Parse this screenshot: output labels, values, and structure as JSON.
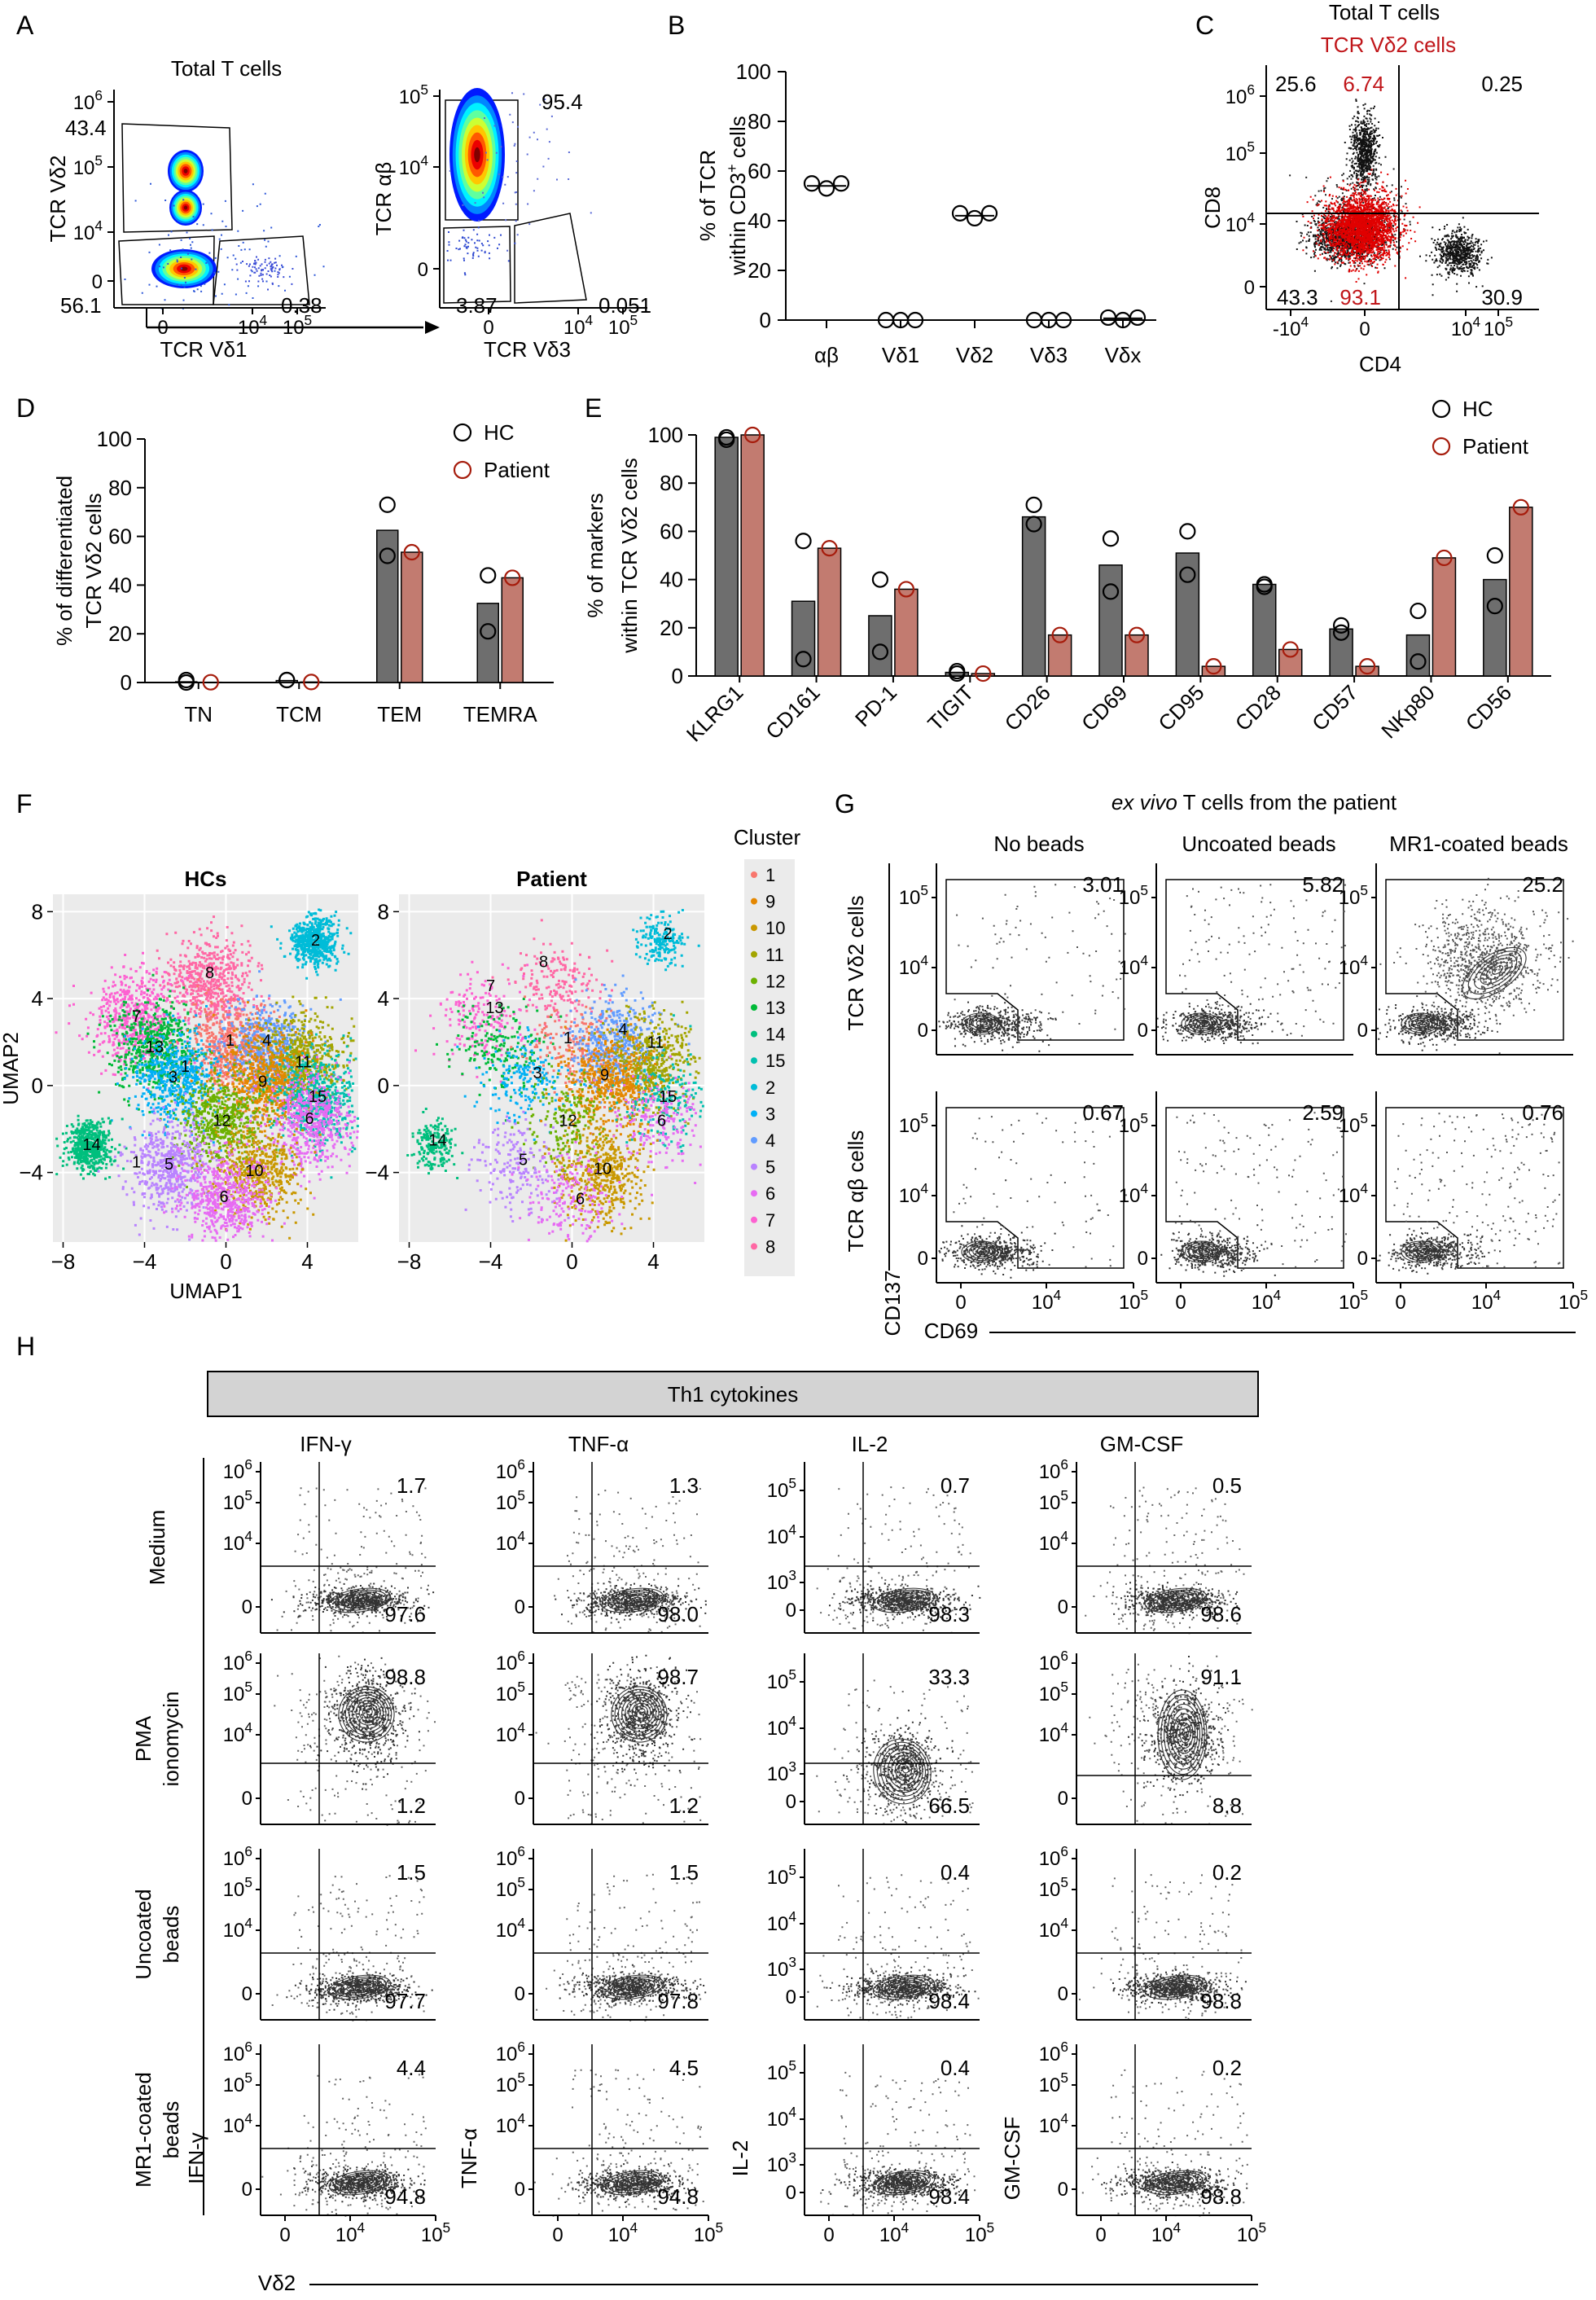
{
  "colors": {
    "hc_bar": "#6e6e6e",
    "patient_bar": "#c27b70",
    "patient_circle": "#a61c0c",
    "red_text": "#c0161a",
    "header_fill": "#d3d3d3",
    "umap_bg": "#ebebeb"
  },
  "chart_data": [
    {
      "id": "A",
      "type": "scatter",
      "panel_label": "A",
      "title": "Total T cells",
      "plots": [
        {
          "xlabel": "TCR Vδ1",
          "ylabel": "TCR Vδ2",
          "yticks": [
            "10^6",
            "10^5",
            "10^4",
            "0"
          ],
          "xticks": [
            "0",
            "10^4",
            "10^5"
          ],
          "gates": [
            "43.4",
            "56.1",
            "0.38"
          ]
        },
        {
          "xlabel": "TCR Vδ3",
          "ylabel": "TCR αβ",
          "yticks": [
            "10^5",
            "10^4",
            "0"
          ],
          "xticks": [
            "0",
            "10^4",
            "10^5"
          ],
          "gates": [
            "95.4",
            "3.87",
            "0.051"
          ]
        }
      ]
    },
    {
      "id": "B",
      "type": "scatter",
      "panel_label": "B",
      "ylabel_lines": [
        "% of TCR",
        "within CD3+ cells"
      ],
      "ylim": [
        0,
        100
      ],
      "yticks": [
        0,
        20,
        40,
        60,
        80,
        100
      ],
      "categories": [
        "αβ",
        "Vδ1",
        "Vδ2",
        "Vδ3",
        "Vδx"
      ],
      "values": [
        [
          55,
          53,
          55
        ],
        [
          0,
          0,
          0
        ],
        [
          43,
          41,
          43
        ],
        [
          0,
          0,
          0
        ],
        [
          1,
          0,
          1
        ]
      ],
      "means": [
        54,
        0,
        42,
        0,
        0.7
      ]
    },
    {
      "id": "C",
      "type": "scatter",
      "panel_label": "C",
      "title": "Total T cells",
      "subtitle": "TCR Vδ2 cells",
      "xlabel": "CD4",
      "ylabel": "CD8",
      "xticks": [
        "-10^4",
        "0",
        "10^4",
        "10^5"
      ],
      "yticks": [
        "10^6",
        "10^5",
        "10^4",
        "0"
      ],
      "quadrants": [
        "25.6",
        "6.74",
        "0.25",
        "43.3",
        "93.1",
        "30.9"
      ]
    },
    {
      "id": "D",
      "type": "bar",
      "panel_label": "D",
      "ylabel_lines": [
        "% of differentiated",
        "TCR Vδ2 cells"
      ],
      "ylim": [
        0,
        100
      ],
      "yticks": [
        0,
        20,
        40,
        60,
        80,
        100
      ],
      "categories": [
        "TN",
        "TCM",
        "TEM",
        "TEMRA"
      ],
      "series": [
        {
          "name": "HC",
          "values": [
            0.3,
            0.8,
            62.5,
            32.5
          ],
          "points": [
            [
              0,
              1
            ],
            [
              1,
              1
            ],
            [
              52,
              73
            ],
            [
              21,
              44
            ]
          ]
        },
        {
          "name": "Patient",
          "values": [
            0.1,
            0.2,
            53.5,
            43
          ],
          "points": [
            [
              0.1
            ],
            [
              0.2
            ],
            [
              53.5
            ],
            [
              43
            ]
          ]
        }
      ],
      "legend": [
        "HC",
        "Patient"
      ]
    },
    {
      "id": "E",
      "type": "bar",
      "panel_label": "E",
      "ylabel_lines": [
        "% of markers",
        "within TCR Vδ2 cells"
      ],
      "ylim": [
        0,
        100
      ],
      "yticks": [
        0,
        20,
        40,
        60,
        80,
        100
      ],
      "categories": [
        "KLRG1",
        "CD161",
        "PD-1",
        "TIGIT",
        "CD26",
        "CD69",
        "CD95",
        "CD28",
        "CD57",
        "NKp80",
        "CD56"
      ],
      "series": [
        {
          "name": "HC",
          "values": [
            99,
            31,
            25,
            1.5,
            66,
            46,
            51,
            38,
            19.5,
            17,
            40
          ],
          "points": [
            [
              99,
              98
            ],
            [
              56,
              7
            ],
            [
              40,
              10
            ],
            [
              1,
              2
            ],
            [
              71,
              63
            ],
            [
              57,
              35
            ],
            [
              60,
              42
            ],
            [
              38,
              37
            ],
            [
              21,
              18
            ],
            [
              27,
              6
            ],
            [
              50,
              29
            ]
          ]
        },
        {
          "name": "Patient",
          "values": [
            100,
            53,
            36,
            1,
            17,
            17,
            4,
            11,
            4,
            49,
            70
          ],
          "points": [
            [
              100
            ],
            [
              53
            ],
            [
              36
            ],
            [
              1
            ],
            [
              17
            ],
            [
              17
            ],
            [
              4
            ],
            [
              11
            ],
            [
              4
            ],
            [
              49
            ],
            [
              70
            ]
          ]
        }
      ],
      "legend": [
        "HC",
        "Patient"
      ]
    },
    {
      "id": "F",
      "type": "scatter",
      "panel_label": "F",
      "titles": [
        "HCs",
        "Patient"
      ],
      "xlabel": "UMAP1",
      "ylabel": "UMAP2",
      "xticks": [
        -8,
        -4,
        0,
        4
      ],
      "yticks": [
        8,
        4,
        0,
        -4
      ],
      "xlim": [
        -8.5,
        6.5
      ],
      "ylim": [
        -7.2,
        8.8
      ],
      "legend_title": "Cluster",
      "clusters": [
        {
          "name": "1",
          "color": "#f8766d"
        },
        {
          "name": "9",
          "color": "#e58700"
        },
        {
          "name": "10",
          "color": "#c99800"
        },
        {
          "name": "11",
          "color": "#a3a500"
        },
        {
          "name": "12",
          "color": "#6bb100"
        },
        {
          "name": "13",
          "color": "#00ba38"
        },
        {
          "name": "14",
          "color": "#00bf7d"
        },
        {
          "name": "15",
          "color": "#00c0af"
        },
        {
          "name": "2",
          "color": "#00bcd8"
        },
        {
          "name": "3",
          "color": "#00b0f6"
        },
        {
          "name": "4",
          "color": "#619cff"
        },
        {
          "name": "5",
          "color": "#b983ff"
        },
        {
          "name": "6",
          "color": "#e76bf3"
        },
        {
          "name": "7",
          "color": "#fd61d1"
        },
        {
          "name": "8",
          "color": "#ff67a4"
        }
      ],
      "centers": [
        {
          "c": "8",
          "x": -0.8,
          "y": 4.8
        },
        {
          "c": "7",
          "x": -4.5,
          "y": 3.2
        },
        {
          "c": "13",
          "x": -3.5,
          "y": 1.8
        },
        {
          "c": "1",
          "x": 0.2,
          "y": 1.8
        },
        {
          "c": "4",
          "x": 2.0,
          "y": 1.8
        },
        {
          "c": "11",
          "x": 3.8,
          "y": 1.1
        },
        {
          "c": "2",
          "x": 4.3,
          "y": 6.7
        },
        {
          "c": "3",
          "x": -2.4,
          "y": 0.4
        },
        {
          "c": "9",
          "x": 1.8,
          "y": 0.2
        },
        {
          "c": "15",
          "x": 4.5,
          "y": -0.5
        },
        {
          "c": "12",
          "x": -0.3,
          "y": -1.6
        },
        {
          "c": "6",
          "x": 4.1,
          "y": -1.6
        },
        {
          "c": "14",
          "x": -6.8,
          "y": -2.7
        },
        {
          "c": "5",
          "x": -2.8,
          "y": -3.6
        },
        {
          "c": "10",
          "x": 1.5,
          "y": -3.9
        },
        {
          "c": "6",
          "x": -0.1,
          "y": -5.2
        }
      ],
      "cluster_labels_hc": [
        {
          "t": "8",
          "x": -0.8,
          "y": 5.2
        },
        {
          "t": "7",
          "x": -4.4,
          "y": 3.2
        },
        {
          "t": "13",
          "x": -3.5,
          "y": 1.8
        },
        {
          "t": "1",
          "x": 0.2,
          "y": 2.1
        },
        {
          "t": "4",
          "x": 2.0,
          "y": 2.1
        },
        {
          "t": "11",
          "x": 3.8,
          "y": 1.1
        },
        {
          "t": "2",
          "x": 4.4,
          "y": 6.7
        },
        {
          "t": "3",
          "x": -2.6,
          "y": 0.4
        },
        {
          "t": "1",
          "x": -2.0,
          "y": 0.9
        },
        {
          "t": "9",
          "x": 1.8,
          "y": 0.2
        },
        {
          "t": "15",
          "x": 4.5,
          "y": -0.5
        },
        {
          "t": "12",
          "x": -0.2,
          "y": -1.6
        },
        {
          "t": "6",
          "x": 4.1,
          "y": -1.5
        },
        {
          "t": "14",
          "x": -6.6,
          "y": -2.7
        },
        {
          "t": "1",
          "x": -4.4,
          "y": -3.5
        },
        {
          "t": "5",
          "x": -2.8,
          "y": -3.6
        },
        {
          "t": "10",
          "x": 1.4,
          "y": -3.9
        },
        {
          "t": "6",
          "x": -0.1,
          "y": -5.1
        }
      ],
      "cluster_labels_patient": [
        {
          "t": "8",
          "x": -1.4,
          "y": 5.7
        },
        {
          "t": "7",
          "x": -4.0,
          "y": 4.6
        },
        {
          "t": "13",
          "x": -3.8,
          "y": 3.6
        },
        {
          "t": "1",
          "x": -0.2,
          "y": 2.2
        },
        {
          "t": "4",
          "x": 2.5,
          "y": 2.6
        },
        {
          "t": "11",
          "x": 4.1,
          "y": 2.0
        },
        {
          "t": "2",
          "x": 4.7,
          "y": 7.0
        },
        {
          "t": "3",
          "x": -1.7,
          "y": 0.6
        },
        {
          "t": "9",
          "x": 1.6,
          "y": 0.5
        },
        {
          "t": "15",
          "x": 4.7,
          "y": -0.5
        },
        {
          "t": "12",
          "x": -0.2,
          "y": -1.6
        },
        {
          "t": "6",
          "x": 4.4,
          "y": -1.6
        },
        {
          "t": "14",
          "x": -6.6,
          "y": -2.5
        },
        {
          "t": "5",
          "x": -2.4,
          "y": -3.4
        },
        {
          "t": "10",
          "x": 1.5,
          "y": -3.8
        },
        {
          "t": "6",
          "x": 0.4,
          "y": -5.2
        }
      ]
    },
    {
      "id": "G",
      "type": "scatter",
      "panel_label": "G",
      "title": "ex vivo T cells from the patient",
      "title_italic": "ex vivo",
      "title_rest": " T cells from the patient",
      "col_titles": [
        "No beads",
        "Uncoated beads",
        "MR1-coated beads"
      ],
      "row_titles": [
        "TCR Vδ2 cells",
        "TCR αβ cells"
      ],
      "xlabel": "CD69",
      "ylabel": "CD137",
      "xticks": [
        "0",
        "10^4",
        "10^5"
      ],
      "yticks": [
        "10^5",
        "10^4",
        "0"
      ],
      "values": [
        [
          "3.01",
          "5.82",
          "25.2"
        ],
        [
          "0.67",
          "2.59",
          "0.76"
        ]
      ]
    },
    {
      "id": "H",
      "type": "scatter",
      "panel_label": "H",
      "header": "Th1 cytokines",
      "col_titles": [
        "IFN-γ",
        "TNF-α",
        "IL-2",
        "GM-CSF"
      ],
      "row_titles": [
        [
          "Medium"
        ],
        [
          "PMA",
          "ionomycin"
        ],
        [
          "Uncoated",
          "beads"
        ],
        [
          "MR1-coated",
          "beads"
        ]
      ],
      "xlabel": "Vδ2",
      "xticks": [
        "0",
        "10^4",
        "10^5"
      ],
      "values": [
        [
          [
            "1.7",
            "97.6"
          ],
          [
            "1.3",
            "98.0"
          ],
          [
            "0.7",
            "98.3"
          ],
          [
            "0.5",
            "98.6"
          ]
        ],
        [
          [
            "98.8",
            "1.2"
          ],
          [
            "98.7",
            "1.2"
          ],
          [
            "33.3",
            "66.5"
          ],
          [
            "91.1",
            "8.8"
          ]
        ],
        [
          [
            "1.5",
            "97.7"
          ],
          [
            "1.5",
            "97.8"
          ],
          [
            "0.4",
            "98.4"
          ],
          [
            "0.2",
            "98.8"
          ]
        ],
        [
          [
            "4.4",
            "94.8"
          ],
          [
            "4.5",
            "94.8"
          ],
          [
            "0.4",
            "98.4"
          ],
          [
            "0.2",
            "98.8"
          ]
        ]
      ]
    }
  ]
}
